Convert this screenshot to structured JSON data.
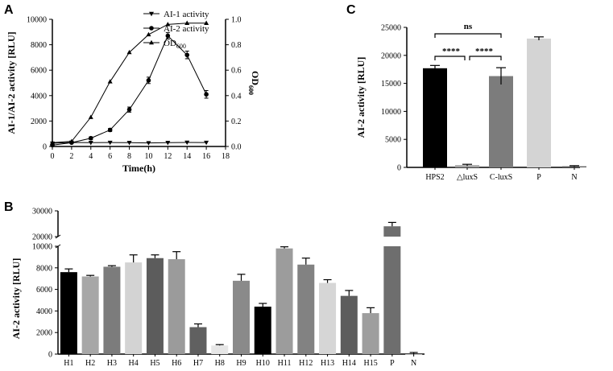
{
  "chart_data": [
    {
      "panel": "A",
      "type": "line",
      "title": "",
      "xlabel": "Time(h)",
      "ylabel": "AI-1/AI-2 activity [RLU]",
      "y2label_main": "OD",
      "y2label_sub": "600",
      "xlim": [
        0,
        18
      ],
      "ylim": [
        0,
        10000
      ],
      "y2lim": [
        0,
        1.0
      ],
      "x_ticks": [
        0,
        2,
        4,
        6,
        8,
        10,
        12,
        14,
        16,
        18
      ],
      "y_ticks": [
        0,
        2000,
        4000,
        6000,
        8000,
        10000
      ],
      "y2_ticks": [
        "0.0",
        "0.2",
        "0.4",
        "0.6",
        "0.8",
        "1.0"
      ],
      "legend_position": "top-right",
      "series": [
        {
          "name": "AI-1 activity",
          "axis": "left",
          "marker": "triangle-down",
          "x": [
            0,
            2,
            4,
            6,
            8,
            10,
            12,
            14,
            16
          ],
          "values": [
            250,
            320,
            300,
            310,
            300,
            280,
            300,
            320,
            310
          ]
        },
        {
          "name": "AI-2 activity",
          "axis": "left",
          "marker": "circle",
          "x": [
            0,
            2,
            4,
            6,
            8,
            10,
            12,
            14,
            16
          ],
          "values": [
            100,
            300,
            650,
            1300,
            2900,
            5200,
            8700,
            7200,
            4100
          ],
          "errors": [
            50,
            60,
            100,
            120,
            200,
            250,
            250,
            300,
            300
          ]
        },
        {
          "name": "OD600",
          "legend_main": "OD",
          "legend_sub": "600",
          "axis": "right",
          "marker": "triangle-up",
          "x": [
            0,
            2,
            4,
            6,
            8,
            10,
            12,
            14,
            16
          ],
          "values": [
            0.03,
            0.04,
            0.23,
            0.51,
            0.74,
            0.88,
            0.96,
            0.97,
            0.97
          ]
        }
      ]
    },
    {
      "panel": "B",
      "type": "bar",
      "title": "",
      "xlabel": "",
      "ylabel": "AI-2 activity [RLU]",
      "categories": [
        "H1",
        "H2",
        "H3",
        "H4",
        "H5",
        "H6",
        "H7",
        "H8",
        "H9",
        "H10",
        "H11",
        "H12",
        "H13",
        "H14",
        "H15",
        "P",
        "N"
      ],
      "values": [
        7600,
        7200,
        8100,
        8500,
        8900,
        8800,
        2500,
        800,
        6800,
        4400,
        9800,
        8300,
        6600,
        5400,
        3800,
        24000,
        0
      ],
      "errors": [
        300,
        100,
        100,
        700,
        300,
        700,
        300,
        80,
        600,
        300,
        150,
        600,
        300,
        500,
        500,
        1500,
        150
      ],
      "colors": [
        "#000000",
        "#a7a7a7",
        "#7c7c7c",
        "#d3d3d3",
        "#5c5c5c",
        "#9b9b9b",
        "#606060",
        "#e6e6e6",
        "#8a8a8a",
        "#000000",
        "#9c9c9c",
        "#828282",
        "#d6d6d6",
        "#5d5d5d",
        "#9e9e9e",
        "#6e6e6e",
        "#ffffff"
      ],
      "ylim": [
        0,
        30000
      ],
      "axis_break": [
        10000,
        20000
      ],
      "y_ticks_lower": [
        0,
        2000,
        4000,
        6000,
        8000,
        10000
      ],
      "y_ticks_upper": [
        20000,
        30000
      ]
    },
    {
      "panel": "C",
      "type": "bar",
      "title": "",
      "xlabel": "",
      "ylabel": "AI-2 activity [RLU]",
      "categories": [
        "HPS2",
        "△luxS",
        "C-luxS",
        "P",
        "N"
      ],
      "values": [
        17700,
        400,
        16300,
        23000,
        200
      ],
      "errors": [
        500,
        150,
        1500,
        300,
        100
      ],
      "colors": [
        "#000000",
        "#a5a5a5",
        "#7c7c7c",
        "#d4d4d4",
        "#5e5e5e"
      ],
      "ylim": [
        0,
        25000
      ],
      "y_ticks": [
        0,
        5000,
        10000,
        15000,
        20000,
        25000
      ],
      "annotations": [
        {
          "from": 0,
          "to": 1,
          "label": "****"
        },
        {
          "from": 1,
          "to": 2,
          "label": "****"
        },
        {
          "from": 0,
          "to": 2,
          "label": "ns"
        }
      ]
    }
  ],
  "panels": {
    "a": "A",
    "b": "B",
    "c": "C"
  }
}
